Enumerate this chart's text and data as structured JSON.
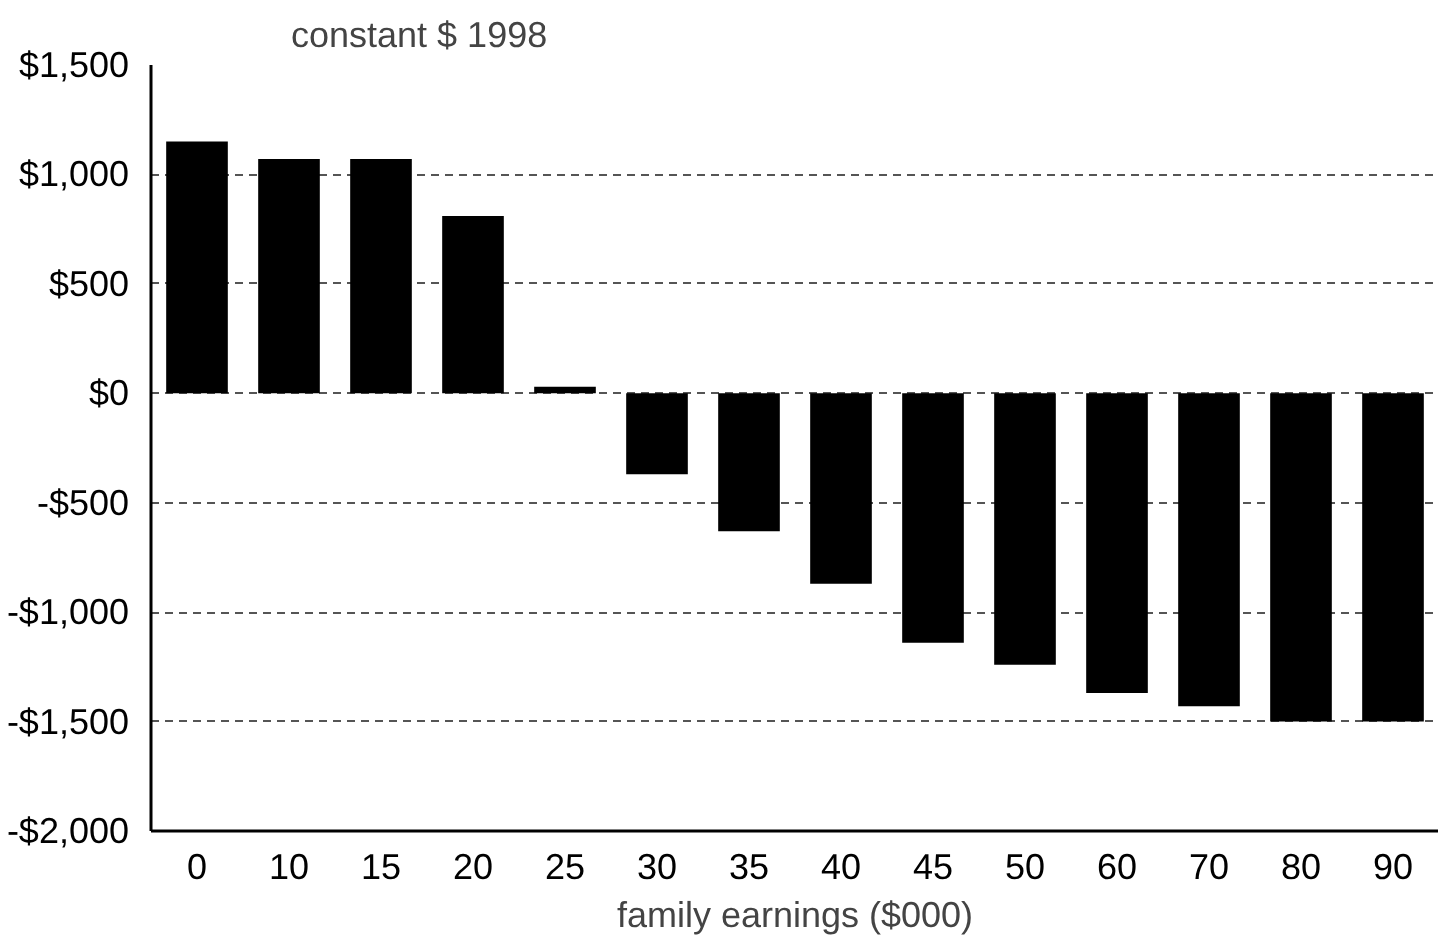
{
  "chart_data": {
    "type": "bar",
    "ylabel": "constant $ 1998",
    "xlabel": "family earnings ($000)",
    "categories": [
      "0",
      "10",
      "15",
      "20",
      "25",
      "30",
      "35",
      "40",
      "45",
      "50",
      "60",
      "70",
      "80",
      "90"
    ],
    "values": [
      1150,
      1070,
      1070,
      810,
      30,
      -370,
      -630,
      -870,
      -1140,
      -1240,
      -1370,
      -1430,
      -1500,
      -1500
    ],
    "color": "#000000",
    "ylim": [
      -2000,
      1500
    ],
    "yticks": [
      {
        "value": -2000,
        "label": "-$2,000"
      },
      {
        "value": -1500,
        "label": "-$1,500"
      },
      {
        "value": -1000,
        "label": "-$1,000"
      },
      {
        "value": -500,
        "label": "-$500"
      },
      {
        "value": 0,
        "label": "$0"
      },
      {
        "value": 500,
        "label": "$500"
      },
      {
        "value": 1000,
        "label": "$1,000"
      },
      {
        "value": 1500,
        "label": "$1,500"
      }
    ],
    "grid": "y"
  }
}
